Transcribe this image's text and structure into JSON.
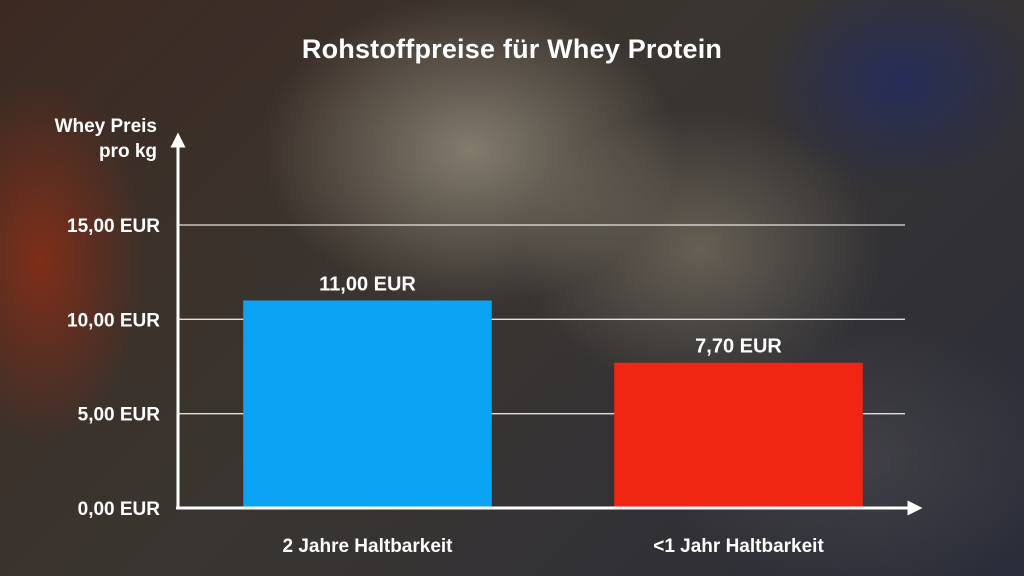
{
  "chart_data": {
    "type": "bar",
    "title": "Rohstoffpreise für Whey Protein",
    "ylabel": "Whey Preis pro kg",
    "ylabel_lines": [
      "Whey Preis",
      "pro kg"
    ],
    "xlabel": "",
    "categories": [
      "2 Jahre Haltbarkeit",
      "<1 Jahr Haltbarkeit"
    ],
    "values": [
      11.0,
      7.7
    ],
    "data_labels": [
      "11,00 EUR",
      "7,70 EUR"
    ],
    "colors": [
      "#0ba4f4",
      "#f02613"
    ],
    "ylim": [
      0,
      15
    ],
    "yticks": [
      {
        "value": 0,
        "label": "0,00 EUR"
      },
      {
        "value": 5,
        "label": "5,00 EUR"
      },
      {
        "value": 10,
        "label": "10,00 EUR"
      },
      {
        "value": 15,
        "label": "15,00 EUR"
      }
    ],
    "grid": true,
    "legend": "none"
  }
}
